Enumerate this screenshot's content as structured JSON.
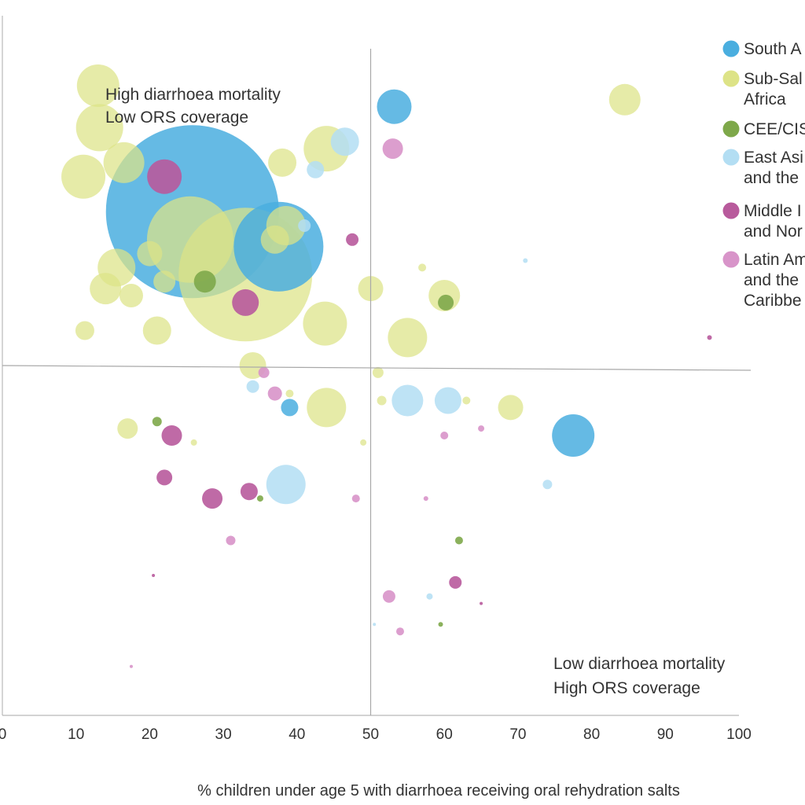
{
  "chart_data": {
    "type": "scatter",
    "subtype": "bubble",
    "xlabel": "% children under age 5 with diarrhoea receiving oral rehydration salts",
    "ylabel": "",
    "xlim": [
      0,
      100
    ],
    "x_ticks": [
      "0",
      "10",
      "20",
      "30",
      "40",
      "50",
      "60",
      "70",
      "80",
      "90",
      "100"
    ],
    "grid": false,
    "reference_lines": {
      "x": 50,
      "y_fraction_of_plot": 0.5
    },
    "annotations": [
      {
        "lines": [
          "High diarrhoea mortality",
          "Low ORS coverage"
        ],
        "position": "top-left"
      },
      {
        "lines": [
          "Low diarrhoea mortality",
          "High ORS coverage"
        ],
        "position": "bottom-right"
      }
    ],
    "legend": {
      "placement": "top-right",
      "entries": [
        {
          "lines": [
            "South A"
          ],
          "color": "#4aaedf"
        },
        {
          "lines": [
            "Sub-Sal",
            "Africa"
          ],
          "color": "#dde387"
        },
        {
          "lines": [
            "CEE/CIS"
          ],
          "color": "#7ea84a"
        },
        {
          "lines": [
            "East Asi",
            "and the"
          ],
          "color": "#b3def3"
        },
        {
          "lines": [
            "Middle I",
            "and Nor"
          ],
          "color": "#b85a9c"
        },
        {
          "lines": [
            "Latin Am",
            "and the",
            "Caribbe"
          ],
          "color": "#d894c9"
        }
      ]
    },
    "series": [
      {
        "color": "#4aaedf",
        "opacity": 0.85,
        "points": [
          {
            "x": 25.8,
            "y": 0.72,
            "r": 110
          },
          {
            "x": 37.5,
            "y": 0.67,
            "r": 57
          },
          {
            "x": 53.2,
            "y": 0.87,
            "r": 22
          },
          {
            "x": 77.5,
            "y": 0.4,
            "r": 27
          },
          {
            "x": 39.0,
            "y": 0.44,
            "r": 11
          }
        ]
      },
      {
        "color": "#dde387",
        "opacity": 0.72,
        "points": [
          {
            "x": 33.0,
            "y": 0.63,
            "r": 85
          },
          {
            "x": 25.5,
            "y": 0.68,
            "r": 55
          },
          {
            "x": 13.0,
            "y": 0.9,
            "r": 27
          },
          {
            "x": 13.2,
            "y": 0.84,
            "r": 30
          },
          {
            "x": 11.0,
            "y": 0.77,
            "r": 28
          },
          {
            "x": 15.5,
            "y": 0.64,
            "r": 24
          },
          {
            "x": 20.0,
            "y": 0.66,
            "r": 16
          },
          {
            "x": 22.0,
            "y": 0.62,
            "r": 14
          },
          {
            "x": 14.0,
            "y": 0.61,
            "r": 20
          },
          {
            "x": 17.5,
            "y": 0.6,
            "r": 15
          },
          {
            "x": 21.0,
            "y": 0.55,
            "r": 18
          },
          {
            "x": 11.2,
            "y": 0.55,
            "r": 12
          },
          {
            "x": 16.5,
            "y": 0.79,
            "r": 26
          },
          {
            "x": 38.0,
            "y": 0.79,
            "r": 18
          },
          {
            "x": 44.0,
            "y": 0.81,
            "r": 29
          },
          {
            "x": 38.5,
            "y": 0.7,
            "r": 25
          },
          {
            "x": 37.0,
            "y": 0.68,
            "r": 18
          },
          {
            "x": 84.5,
            "y": 0.88,
            "r": 20
          },
          {
            "x": 43.8,
            "y": 0.56,
            "r": 28
          },
          {
            "x": 44.0,
            "y": 0.44,
            "r": 25
          },
          {
            "x": 34.0,
            "y": 0.5,
            "r": 17
          },
          {
            "x": 55.0,
            "y": 0.54,
            "r": 25
          },
          {
            "x": 50.0,
            "y": 0.61,
            "r": 16
          },
          {
            "x": 60.0,
            "y": 0.6,
            "r": 20
          },
          {
            "x": 69.0,
            "y": 0.44,
            "r": 16
          },
          {
            "x": 17.0,
            "y": 0.41,
            "r": 13
          },
          {
            "x": 57.0,
            "y": 0.64,
            "r": 5
          },
          {
            "x": 51.0,
            "y": 0.49,
            "r": 7
          },
          {
            "x": 51.5,
            "y": 0.45,
            "r": 6
          },
          {
            "x": 63.0,
            "y": 0.45,
            "r": 5
          },
          {
            "x": 26.0,
            "y": 0.39,
            "r": 4
          },
          {
            "x": 49.0,
            "y": 0.39,
            "r": 4
          },
          {
            "x": 39.0,
            "y": 0.46,
            "r": 5
          }
        ]
      },
      {
        "color": "#7ea84a",
        "opacity": 0.9,
        "points": [
          {
            "x": 27.5,
            "y": 0.62,
            "r": 14
          },
          {
            "x": 60.2,
            "y": 0.59,
            "r": 10
          },
          {
            "x": 21.0,
            "y": 0.42,
            "r": 6
          },
          {
            "x": 62.0,
            "y": 0.25,
            "r": 5
          },
          {
            "x": 35.0,
            "y": 0.31,
            "r": 4
          },
          {
            "x": 59.5,
            "y": 0.13,
            "r": 3
          }
        ]
      },
      {
        "color": "#b3def3",
        "opacity": 0.85,
        "points": [
          {
            "x": 46.5,
            "y": 0.82,
            "r": 18
          },
          {
            "x": 42.5,
            "y": 0.78,
            "r": 11
          },
          {
            "x": 41.0,
            "y": 0.7,
            "r": 8
          },
          {
            "x": 55.0,
            "y": 0.45,
            "r": 20
          },
          {
            "x": 60.5,
            "y": 0.45,
            "r": 17
          },
          {
            "x": 38.5,
            "y": 0.33,
            "r": 25
          },
          {
            "x": 34.0,
            "y": 0.47,
            "r": 8
          },
          {
            "x": 74.0,
            "y": 0.33,
            "r": 6
          },
          {
            "x": 71.0,
            "y": 0.65,
            "r": 3
          },
          {
            "x": 58.0,
            "y": 0.17,
            "r": 4
          },
          {
            "x": 50.5,
            "y": 0.13,
            "r": 2
          }
        ]
      },
      {
        "color": "#b85a9c",
        "opacity": 0.9,
        "points": [
          {
            "x": 22.0,
            "y": 0.77,
            "r": 22
          },
          {
            "x": 33.0,
            "y": 0.59,
            "r": 17
          },
          {
            "x": 47.5,
            "y": 0.68,
            "r": 8
          },
          {
            "x": 23.0,
            "y": 0.4,
            "r": 13
          },
          {
            "x": 22.0,
            "y": 0.34,
            "r": 10
          },
          {
            "x": 28.5,
            "y": 0.31,
            "r": 13
          },
          {
            "x": 33.5,
            "y": 0.32,
            "r": 11
          },
          {
            "x": 61.5,
            "y": 0.19,
            "r": 8
          },
          {
            "x": 20.5,
            "y": 0.2,
            "r": 2
          },
          {
            "x": 65.0,
            "y": 0.16,
            "r": 2
          },
          {
            "x": 96.0,
            "y": 0.54,
            "r": 3
          }
        ]
      },
      {
        "color": "#d894c9",
        "opacity": 0.9,
        "points": [
          {
            "x": 53.0,
            "y": 0.81,
            "r": 13
          },
          {
            "x": 35.5,
            "y": 0.49,
            "r": 7
          },
          {
            "x": 37.0,
            "y": 0.46,
            "r": 9
          },
          {
            "x": 31.0,
            "y": 0.25,
            "r": 6
          },
          {
            "x": 48.0,
            "y": 0.31,
            "r": 5
          },
          {
            "x": 52.5,
            "y": 0.17,
            "r": 8
          },
          {
            "x": 54.0,
            "y": 0.12,
            "r": 5
          },
          {
            "x": 60.0,
            "y": 0.4,
            "r": 5
          },
          {
            "x": 65.0,
            "y": 0.41,
            "r": 4
          },
          {
            "x": 57.5,
            "y": 0.31,
            "r": 3
          },
          {
            "x": 17.5,
            "y": 0.07,
            "r": 2
          }
        ]
      }
    ]
  }
}
